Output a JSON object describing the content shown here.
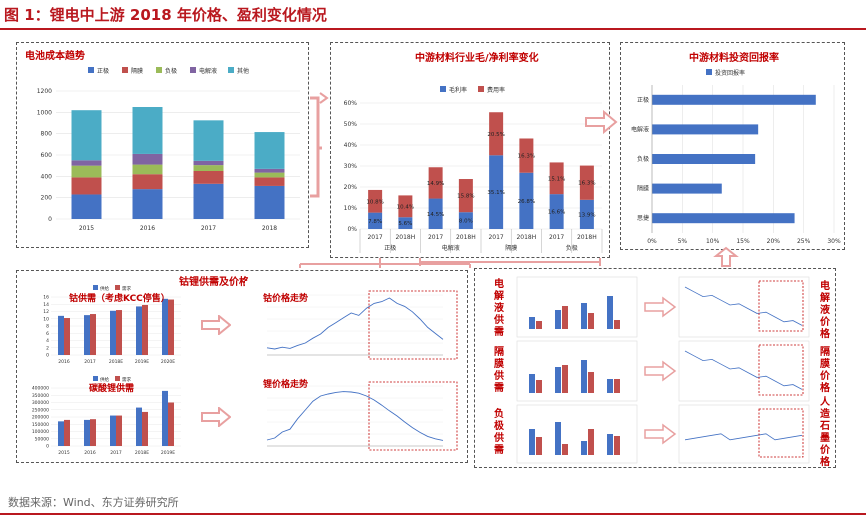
{
  "figure_title": "图 1：锂电中上游 2018 年价格、盈利变化情况",
  "source": "数据来源：Wind、东方证券研究所",
  "colors": {
    "accent": "#b9181f",
    "blue": "#4472c4",
    "red": "#c0504d",
    "green": "#9bbb59",
    "purple": "#8064a2",
    "teal": "#4bacc6"
  },
  "panels": {
    "cost": {
      "title": "电池成本趋势"
    },
    "margin": {
      "title": "中游材料行业毛/净利率变化"
    },
    "roi": {
      "title": "中游材料投资回报率"
    },
    "cobalt_lithium": {
      "title": "钴锂供需及价格",
      "cobalt_supply_label": "钴供需（考虑KCC停售）",
      "cobalt_price_label": "钴价格走势",
      "lithium_supply_label": "碳酸锂供需",
      "lithium_price_label": "锂价格走势"
    },
    "materials": {
      "electrolyte_supply": "电解液供需",
      "electrolyte_price": "电解液价格",
      "separator_supply": "隔膜供需",
      "separator_price": "隔膜价格",
      "anode_supply": "负极供需",
      "graphite_price": "人造石墨价格"
    }
  },
  "chart_data": [
    {
      "id": "battery_cost",
      "type": "bar",
      "stacked": true,
      "title": "电池成本趋势",
      "categories": [
        "2015",
        "2016",
        "2017",
        "2018"
      ],
      "series": [
        {
          "name": "正极",
          "values": [
            230,
            280,
            330,
            310
          ],
          "color": "#4472c4"
        },
        {
          "name": "隔膜",
          "values": [
            160,
            140,
            120,
            80
          ],
          "color": "#c0504d"
        },
        {
          "name": "负极",
          "values": [
            110,
            90,
            55,
            45
          ],
          "color": "#9bbb59"
        },
        {
          "name": "电解液",
          "values": [
            50,
            100,
            40,
            35
          ],
          "color": "#8064a2"
        },
        {
          "name": "其他",
          "values": [
            470,
            440,
            380,
            345
          ],
          "color": "#4bacc6"
        }
      ],
      "ylim": [
        0,
        1200
      ],
      "yticks": [
        "0",
        "200",
        "400",
        "600",
        "800",
        "1000",
        "1200"
      ],
      "legend": "top"
    },
    {
      "id": "margins",
      "type": "bar",
      "stacked": true,
      "title": "中游材料行业毛/净利率变化",
      "categories": [
        "2017",
        "2018H",
        "2017",
        "2018H",
        "2017",
        "2018H",
        "2017",
        "2018H"
      ],
      "groups": [
        "正极",
        "电解液",
        "隔膜",
        "负极"
      ],
      "series": [
        {
          "name": "毛利率",
          "values": [
            7.8,
            5.6,
            14.5,
            8.0,
            35.1,
            26.8,
            16.6,
            13.9
          ],
          "labels": [
            "7.8%",
            "5.6%",
            "14.5%",
            "8.0%",
            "35.1%",
            "26.8%",
            "16.6%",
            "13.9%"
          ],
          "color": "#4472c4"
        },
        {
          "name": "费用率",
          "values": [
            10.8,
            10.4,
            14.9,
            15.8,
            20.5,
            16.3,
            15.1,
            16.3
          ],
          "labels": [
            "10.8%",
            "10.4%",
            "14.9%",
            "15.8%",
            "20.5%",
            "16.3%",
            "15.1%",
            "16.3%"
          ],
          "color": "#c0504d"
        }
      ],
      "ylim": [
        0,
        60
      ],
      "yticks": [
        "0%",
        "10%",
        "20%",
        "30%",
        "40%",
        "50%",
        "60%"
      ],
      "legend": "top"
    },
    {
      "id": "roi",
      "type": "bar",
      "orientation": "horizontal",
      "title": "中游材料投资回报率",
      "categories": [
        "正极",
        "电解液",
        "负极",
        "隔膜",
        "思捷"
      ],
      "series": [
        {
          "name": "投资回报率",
          "values": [
            27,
            17.5,
            17,
            11.5,
            23.5
          ],
          "color": "#4472c4"
        }
      ],
      "xlim": [
        0,
        30
      ],
      "xticks": [
        "0%",
        "5%",
        "10%",
        "15%",
        "20%",
        "25%",
        "30%"
      ],
      "legend": "top"
    },
    {
      "id": "cobalt_supply",
      "type": "bar",
      "title": "钴供需（考虑KCC停售）",
      "categories": [
        "2016",
        "2017",
        "2018E",
        "2019E",
        "2020E"
      ],
      "series": [
        {
          "name": "供给",
          "values": [
            10.8,
            11.0,
            12.2,
            13.4,
            15.5
          ],
          "color": "#4472c4"
        },
        {
          "name": "需求",
          "values": [
            10.2,
            11.3,
            12.4,
            13.8,
            15.3
          ],
          "color": "#c0504d"
        }
      ],
      "ylim": [
        0,
        16
      ],
      "yticks": [
        "0",
        "2",
        "4",
        "6",
        "8",
        "10",
        "12",
        "14",
        "16"
      ]
    },
    {
      "id": "lithium_supply",
      "type": "bar",
      "title": "碳酸锂供需",
      "categories": [
        "2015",
        "2016",
        "2017",
        "2018E",
        "2019E"
      ],
      "series": [
        {
          "name": "供给",
          "values": [
            170000,
            180000,
            210000,
            265000,
            380000
          ],
          "color": "#4472c4"
        },
        {
          "name": "需求",
          "values": [
            180000,
            185000,
            210000,
            235000,
            300000
          ],
          "color": "#c0504d"
        }
      ],
      "ylim": [
        0,
        400000
      ],
      "yticks": [
        "0",
        "50000",
        "100000",
        "150000",
        "200000",
        "250000",
        "300000",
        "350000",
        "400000"
      ]
    },
    {
      "id": "cobalt_price",
      "type": "line",
      "title": "钴价格走势",
      "values": [
        5.2,
        5.0,
        5.3,
        5.1,
        5.6,
        6.0,
        6.8,
        7.5,
        8.6,
        9.4,
        10.2,
        11.0,
        10.6,
        11.8,
        12.6,
        12.9,
        13.5,
        12.6,
        12.1,
        11.2,
        10.0,
        8.6,
        7.6,
        6.6
      ],
      "ylim": [
        4,
        14
      ]
    },
    {
      "id": "lithium_price",
      "type": "line",
      "title": "锂价格走势",
      "values": [
        4.5,
        5.0,
        6.5,
        7.2,
        9.8,
        12.0,
        14.2,
        15.5,
        16.0,
        16.4,
        16.6,
        16.5,
        16.2,
        15.5,
        14.5,
        13.2,
        11.8,
        10.5,
        9.0,
        7.6,
        6.4,
        5.4,
        4.8,
        4.4
      ],
      "ylim": [
        3,
        18
      ]
    }
  ]
}
